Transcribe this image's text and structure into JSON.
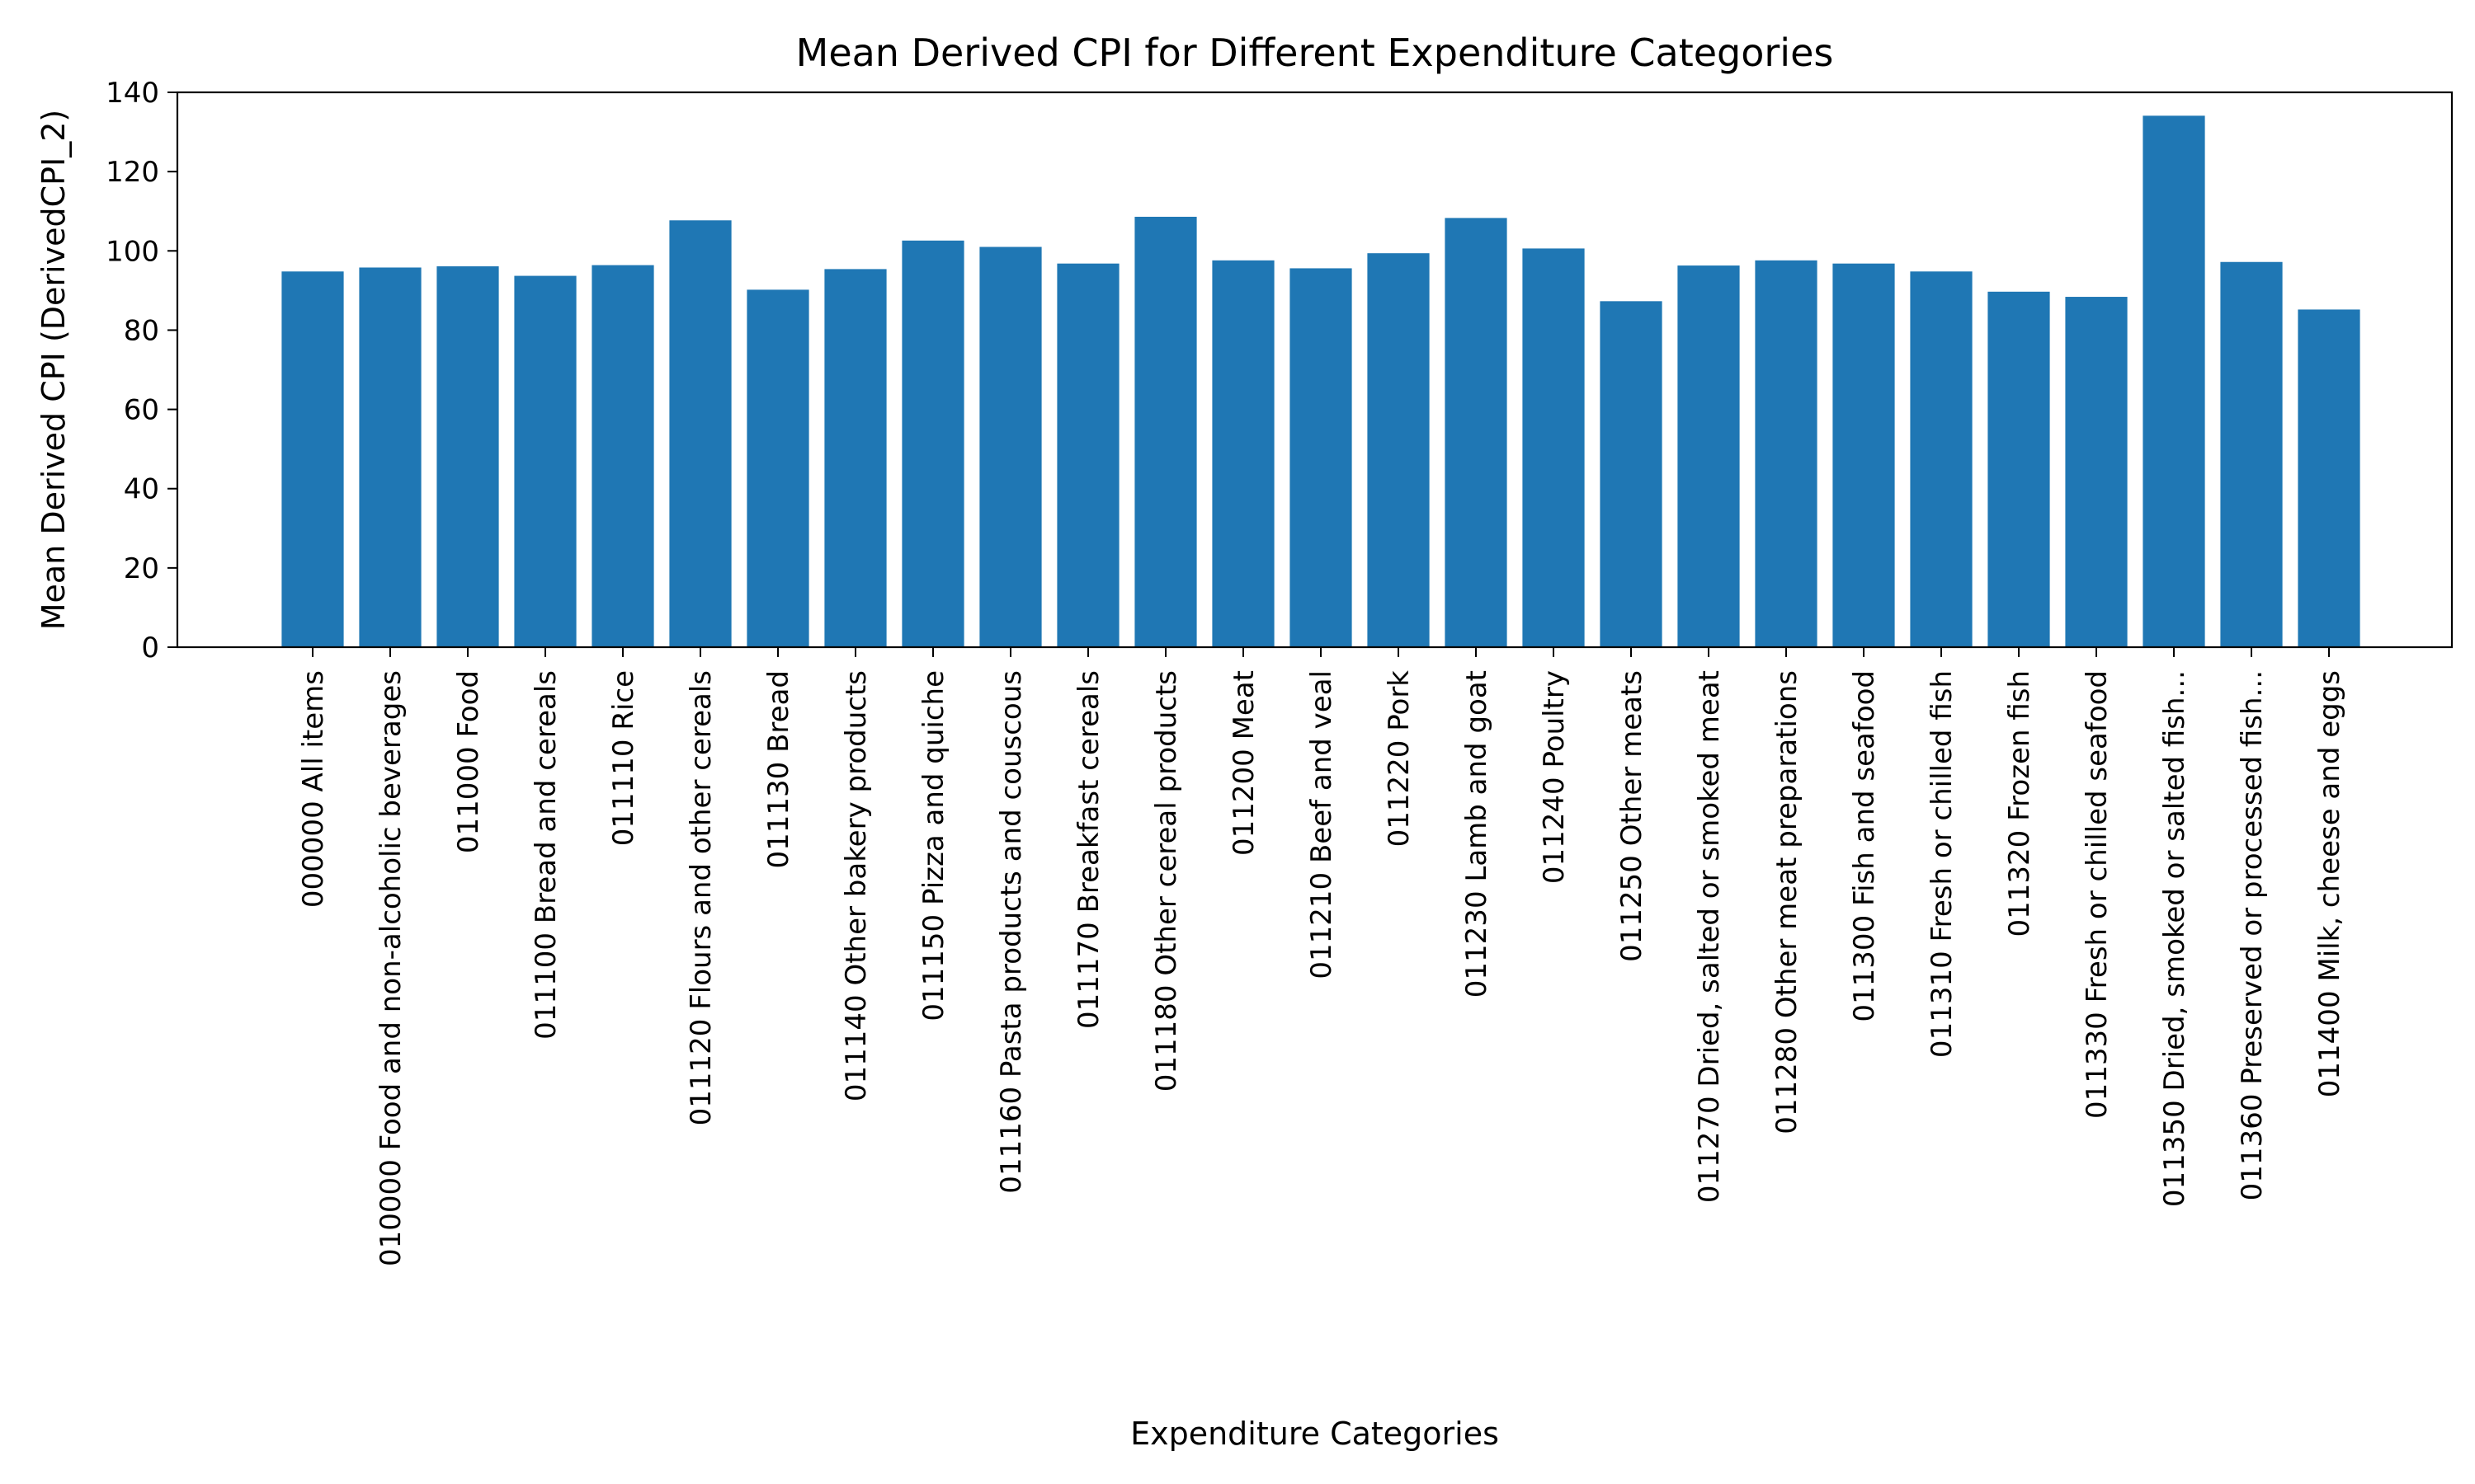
{
  "chart_data": {
    "type": "bar",
    "title": "Mean Derived CPI for Different Expenditure Categories",
    "xlabel": "Expenditure Categories",
    "ylabel": "Mean Derived CPI (DerivedCPI_2)",
    "ylim": [
      0,
      140
    ],
    "yticks": [
      0,
      20,
      40,
      60,
      80,
      100,
      120,
      140
    ],
    "grid": false,
    "legend": "none",
    "bar_color": "#1f77b4",
    "categories": [
      "000000 All items",
      "010000 Food and non-alcoholic beverages",
      "011000 Food",
      "011100 Bread and cereals",
      "011110 Rice",
      "011120 Flours and other cereals",
      "011130 Bread",
      "011140 Other bakery products",
      "011150 Pizza and quiche",
      "011160 Pasta products and couscous",
      "011170 Breakfast cereals",
      "011180 Other cereal products",
      "011200 Meat",
      "011210 Beef and veal",
      "011220 Pork",
      "011230 Lamb and goat",
      "011240 Poultry",
      "011250 Other meats",
      "011270 Dried, salted or smoked meat",
      "011280 Other meat preparations",
      "011300 Fish and seafood",
      "011310 Fresh or chilled fish",
      "011320 Frozen fish",
      "011330 Fresh or chilled seafood",
      "011350 Dried, smoked or salted fish...",
      "011360 Preserved or processed fish...",
      "011400 Milk, cheese and eggs"
    ],
    "values": [
      94.8,
      95.8,
      96.1,
      93.7,
      96.4,
      107.7,
      90.2,
      95.4,
      102.6,
      101.0,
      96.8,
      108.6,
      97.6,
      95.6,
      99.4,
      108.3,
      100.6,
      87.3,
      96.3,
      97.6,
      96.8,
      94.8,
      89.7,
      88.4,
      134.1,
      97.2,
      85.2
    ]
  }
}
